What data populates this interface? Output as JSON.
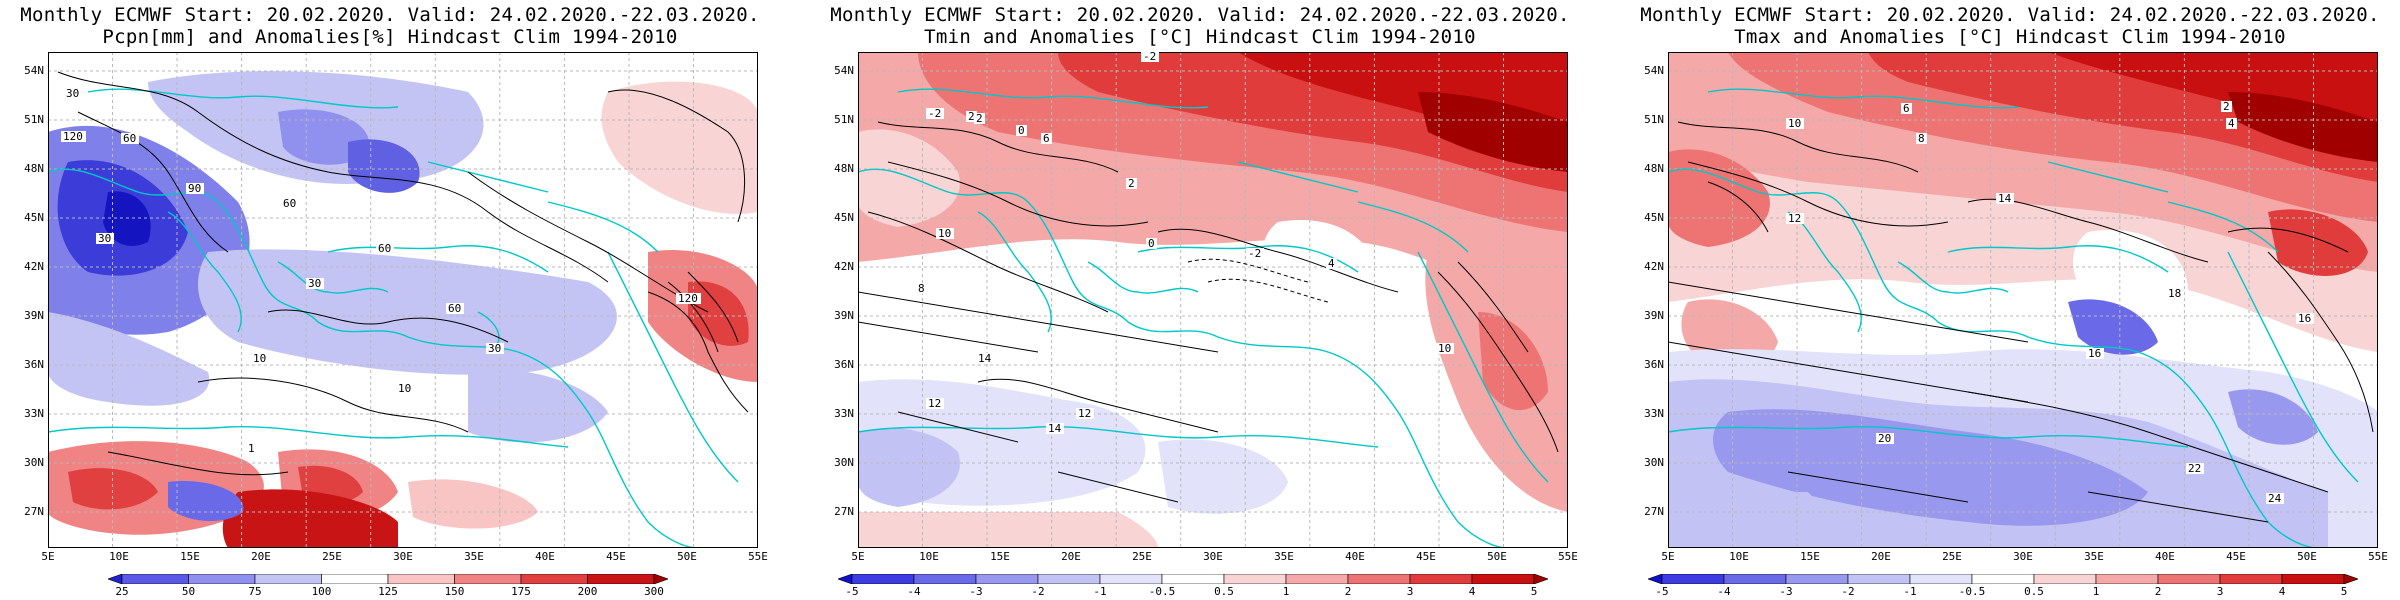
{
  "panels": [
    {
      "title_line1": "Monthly ECMWF Start: 20.02.2020. Valid: 24.02.2020.-22.03.2020.",
      "title_line2": "Pcpn[mm] and Anomalies[%] Hindcast Clim 1994-2010",
      "colorbar": {
        "labels": [
          "25",
          "50",
          "75",
          "100",
          "125",
          "150",
          "175",
          "200",
          "300"
        ],
        "colors": [
          "#2020d8",
          "#5a5ae6",
          "#9090ee",
          "#c4c4f4",
          "#ffffff",
          "#f8c4c4",
          "#f08484",
          "#e04040",
          "#c81414",
          "#a00000"
        ]
      },
      "contour_labels": [
        "60",
        "30",
        "120",
        "90",
        "30",
        "60",
        "30",
        "10",
        "60",
        "60",
        "30",
        "120",
        "10",
        "1"
      ]
    },
    {
      "title_line1": "Monthly ECMWF Start: 20.02.2020. Valid: 24.02.2020.-22.03.2020.",
      "title_line2": "Tmin and Anomalies [°C] Hindcast Clim 1994-2010",
      "colorbar": {
        "labels": [
          "-5",
          "-4",
          "-3",
          "-2",
          "-1",
          "-0.5",
          "0.5",
          "1",
          "2",
          "3",
          "4",
          "5"
        ],
        "colors": [
          "#1010d0",
          "#3c3ce0",
          "#6a6ae8",
          "#9898ee",
          "#c2c2f4",
          "#e2e2fa",
          "#ffffff",
          "#f8d4d4",
          "#f4a8a8",
          "#ee7474",
          "#e03c3c",
          "#c81010",
          "#a00000"
        ]
      },
      "contour_labels": [
        "-2",
        "2",
        "0",
        "-2",
        "2",
        "6",
        "10",
        "2",
        "0",
        "4",
        "12",
        "14",
        "-2",
        "8",
        "10",
        "14",
        "12"
      ]
    },
    {
      "title_line1": "Monthly ECMWF Start: 20.02.2020. Valid: 24.02.2020.-22.03.2020.",
      "title_line2": "Tmax and Anomalies [°C] Hindcast Clim 1994-2010",
      "colorbar": {
        "labels": [
          "-5",
          "-4",
          "-3",
          "-2",
          "-1",
          "-0.5",
          "0.5",
          "1",
          "2",
          "3",
          "4",
          "5"
        ],
        "colors": [
          "#1010d0",
          "#3c3ce0",
          "#6a6ae8",
          "#9898ee",
          "#c2c2f4",
          "#e2e2fa",
          "#ffffff",
          "#f8d4d4",
          "#f4a8a8",
          "#ee7474",
          "#e03c3c",
          "#c81010",
          "#a00000"
        ]
      },
      "contour_labels": [
        "2",
        "4",
        "6",
        "8",
        "10",
        "14",
        "12",
        "16",
        "18",
        "20",
        "22",
        "24",
        "16"
      ]
    }
  ],
  "axes": {
    "lat_labels": [
      "54N",
      "51N",
      "48N",
      "45N",
      "42N",
      "39N",
      "36N",
      "33N",
      "30N",
      "27N"
    ],
    "lon_labels": [
      "5E",
      "10E",
      "15E",
      "20E",
      "25E",
      "30E",
      "35E",
      "40E",
      "45E",
      "50E",
      "55E"
    ]
  },
  "colors": {
    "coast": "#00c8c8",
    "contour": "#000000",
    "frame": "#000000",
    "grid": "#b8b8b8"
  }
}
